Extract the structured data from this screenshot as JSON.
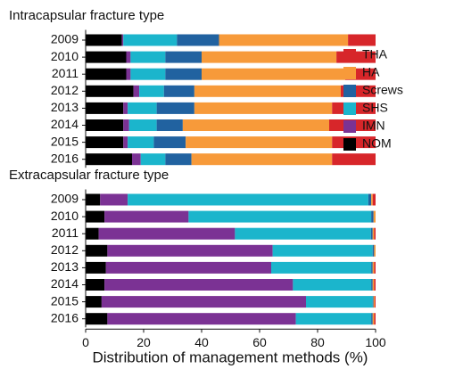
{
  "chart_data": {
    "type": "bar",
    "orientation": "horizontal",
    "stacked": true,
    "xlabel": "Distribution of management methods (%)",
    "xlim": [
      0,
      100
    ],
    "xticks": [
      0,
      20,
      40,
      60,
      80,
      100
    ],
    "series": [
      {
        "name": "NOM",
        "color": "#000000"
      },
      {
        "name": "IMN",
        "color": "#7b3294"
      },
      {
        "name": "SHS",
        "color": "#1bb5cc"
      },
      {
        "name": "Screws",
        "color": "#2162a0"
      },
      {
        "name": "HA",
        "color": "#f79a3a"
      },
      {
        "name": "THA",
        "color": "#d7262a"
      }
    ],
    "panels": [
      {
        "title": "Intracapsular fracture type",
        "categories": [
          "2009",
          "2010",
          "2011",
          "2012",
          "2013",
          "2014",
          "2015",
          "2016"
        ],
        "values": [
          [
            12.5,
            14,
            14,
            16.5,
            13,
            13,
            13,
            16
          ],
          [
            0.5,
            1.5,
            1.5,
            2,
            1.5,
            2,
            1.5,
            3
          ],
          [
            18.5,
            12,
            12,
            8.5,
            10,
            9.5,
            9,
            8.5
          ],
          [
            14.5,
            12.5,
            12.5,
            10.5,
            13,
            9,
            11,
            9
          ],
          [
            44.5,
            46.5,
            49.5,
            50.5,
            47.5,
            50.5,
            50.5,
            48.5
          ],
          [
            9.5,
            13.5,
            10.5,
            12,
            15,
            16,
            15,
            15
          ]
        ]
      },
      {
        "title": "Extracapsular fracture type",
        "categories": [
          "2009",
          "2010",
          "2011",
          "2012",
          "2013",
          "2014",
          "2015",
          "2016"
        ],
        "values": [
          [
            5,
            6.5,
            4.5,
            7.5,
            7,
            6.5,
            5.5,
            7.5
          ],
          [
            9.5,
            29,
            47,
            57,
            57,
            65,
            70.5,
            65
          ],
          [
            83,
            63,
            46.9,
            34.5,
            34.5,
            27,
            23,
            26
          ],
          [
            1,
            0.8,
            0.6,
            0.5,
            0.5,
            0.5,
            0.3,
            0.5
          ],
          [
            0.5,
            0.7,
            0.5,
            0.5,
            0.5,
            0.5,
            0.4,
            0.5
          ],
          [
            1,
            0,
            0.5,
            0,
            0.5,
            0.5,
            0.3,
            0.5
          ]
        ]
      }
    ]
  }
}
